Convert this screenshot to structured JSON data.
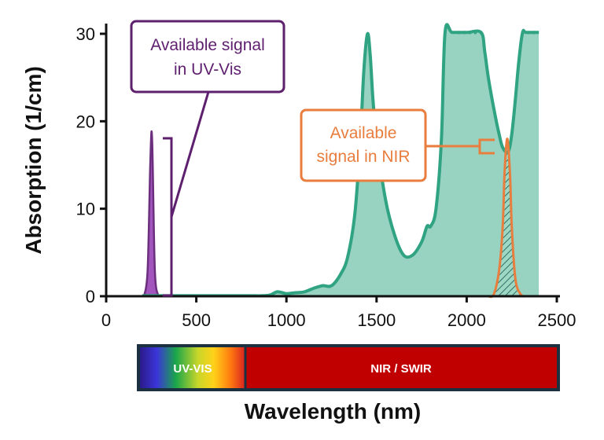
{
  "chart_data": {
    "type": "area",
    "title": "",
    "xlabel": "Wavelength (nm)",
    "ylabel": "Absorption (1/cm)",
    "xlim": [
      0,
      2500
    ],
    "ylim": [
      0,
      30
    ],
    "x_ticks": [
      0,
      500,
      1000,
      1500,
      2000,
      2500
    ],
    "y_ticks": [
      0,
      10,
      20,
      30
    ],
    "grid": false,
    "series": [
      {
        "name": "Absorption",
        "color": "#2fa382",
        "fill": "#98d2c0",
        "x": [
          200,
          400,
          600,
          800,
          900,
          950,
          1000,
          1050,
          1100,
          1150,
          1200,
          1250,
          1300,
          1340,
          1380,
          1410,
          1430,
          1450,
          1465,
          1480,
          1500,
          1550,
          1600,
          1650,
          1700,
          1750,
          1780,
          1800,
          1830,
          1860,
          1880,
          1920,
          2000,
          2080,
          2100,
          2120,
          2150,
          2180,
          2200,
          2230,
          2250,
          2270,
          2290,
          2310,
          2330,
          2400
        ],
        "y": [
          0.05,
          0.05,
          0.05,
          0.05,
          0.1,
          0.5,
          0.3,
          0.4,
          0.5,
          0.9,
          1.2,
          1.2,
          2.5,
          4.5,
          9.5,
          18.0,
          26.0,
          30.0,
          27.5,
          22.5,
          18.0,
          11.0,
          7.0,
          4.7,
          4.7,
          6.2,
          8.0,
          8.0,
          10.0,
          18.0,
          31.0,
          31.0,
          31.0,
          31.0,
          28.0,
          25.0,
          21.5,
          18.5,
          17.0,
          16.5,
          18.5,
          22.5,
          27.0,
          31.0,
          31.0,
          31.0
        ]
      },
      {
        "name": "Available signal in UV-Vis",
        "color": "#6c2f7e",
        "fill": "#a155bd",
        "x": [
          210,
          230,
          245,
          255,
          270,
          290
        ],
        "y": [
          0,
          3.0,
          15.5,
          18.0,
          3.0,
          0
        ]
      },
      {
        "name": "Available signal in NIR",
        "color": "#e87d3e",
        "fill": "#8fcfba",
        "x": [
          2120,
          2150,
          2180,
          2200,
          2210,
          2225,
          2240,
          2250,
          2270,
          2300,
          2330
        ],
        "y": [
          0,
          0.2,
          3.0,
          8.0,
          14.0,
          18.0,
          14.0,
          8.0,
          2.0,
          0.2,
          0
        ]
      }
    ],
    "annotations": [
      {
        "text_line1": "Available signal",
        "text_line2": "in UV-Vis",
        "color": "#5e1f6e"
      },
      {
        "text_line1": "Available",
        "text_line2": "signal in NIR",
        "color": "#e87d3e"
      }
    ],
    "wavelength_bands": [
      {
        "label": "UV-VIS",
        "start": 200,
        "end": 780
      },
      {
        "label": "NIR / SWIR",
        "start": 780,
        "end": 2500,
        "color": "#c00000"
      }
    ]
  }
}
